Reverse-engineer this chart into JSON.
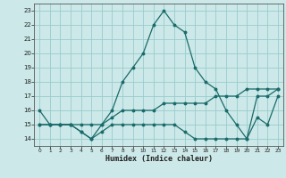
{
  "xlabel": "Humidex (Indice chaleur)",
  "bg_color": "#cce8e8",
  "grid_color": "#99cccc",
  "line_color": "#1a6b6b",
  "xlim": [
    -0.5,
    23.5
  ],
  "ylim": [
    13.5,
    23.5
  ],
  "yticks": [
    14,
    15,
    16,
    17,
    18,
    19,
    20,
    21,
    22,
    23
  ],
  "xticks": [
    0,
    1,
    2,
    3,
    4,
    5,
    6,
    7,
    8,
    9,
    10,
    11,
    12,
    13,
    14,
    15,
    16,
    17,
    18,
    19,
    20,
    21,
    22,
    23
  ],
  "line1_x": [
    0,
    1,
    2,
    3,
    4,
    5,
    6,
    7,
    8,
    9,
    10,
    11,
    12,
    13,
    14,
    15,
    16,
    17,
    18,
    19,
    20,
    21,
    22,
    23
  ],
  "line1_y": [
    16,
    15,
    15,
    15,
    14.5,
    14,
    15,
    16,
    18,
    19,
    20,
    22,
    23,
    22,
    21.5,
    19,
    18,
    17.5,
    16,
    15,
    14,
    17,
    17,
    17.5
  ],
  "line2_x": [
    0,
    1,
    2,
    3,
    4,
    5,
    6,
    7,
    8,
    9,
    10,
    11,
    12,
    13,
    14,
    15,
    16,
    17,
    18,
    19,
    20,
    21,
    22,
    23
  ],
  "line2_y": [
    15,
    15,
    15,
    15,
    15,
    15,
    15,
    15.5,
    16,
    16,
    16,
    16,
    16.5,
    16.5,
    16.5,
    16.5,
    16.5,
    17,
    17,
    17,
    17.5,
    17.5,
    17.5,
    17.5
  ],
  "line3_x": [
    0,
    1,
    2,
    3,
    4,
    5,
    6,
    7,
    8,
    9,
    10,
    11,
    12,
    13,
    14,
    15,
    16,
    17,
    18,
    19,
    20,
    21,
    22,
    23
  ],
  "line3_y": [
    15,
    15,
    15,
    15,
    14.5,
    14,
    14.5,
    15,
    15,
    15,
    15,
    15,
    15,
    15,
    14.5,
    14,
    14,
    14,
    14,
    14,
    14,
    15.5,
    15,
    17
  ]
}
